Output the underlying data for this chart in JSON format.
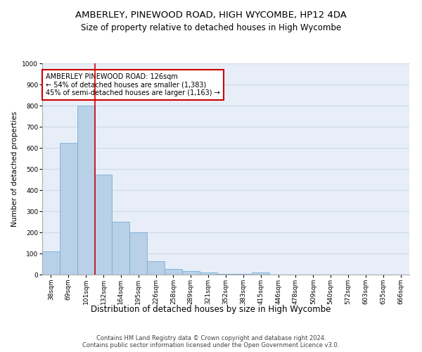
{
  "title": "AMBERLEY, PINEWOOD ROAD, HIGH WYCOMBE, HP12 4DA",
  "subtitle": "Size of property relative to detached houses in High Wycombe",
  "xlabel": "Distribution of detached houses by size in High Wycombe",
  "ylabel": "Number of detached properties",
  "categories": [
    "38sqm",
    "69sqm",
    "101sqm",
    "132sqm",
    "164sqm",
    "195sqm",
    "226sqm",
    "258sqm",
    "289sqm",
    "321sqm",
    "352sqm",
    "383sqm",
    "415sqm",
    "446sqm",
    "478sqm",
    "509sqm",
    "540sqm",
    "572sqm",
    "603sqm",
    "635sqm",
    "666sqm"
  ],
  "values": [
    110,
    625,
    800,
    475,
    250,
    200,
    62,
    27,
    18,
    10,
    5,
    3,
    10,
    0,
    0,
    0,
    0,
    0,
    0,
    0,
    0
  ],
  "bar_color": "#b8d0e8",
  "bar_edge_color": "#7aafd4",
  "vline_x_index": 2.5,
  "vline_color": "#cc0000",
  "annotation_box_text": "AMBERLEY PINEWOOD ROAD: 126sqm\n← 54% of detached houses are smaller (1,383)\n45% of semi-detached houses are larger (1,163) →",
  "annotation_box_facecolor": "white",
  "annotation_box_edgecolor": "#cc0000",
  "ylim": [
    0,
    1000
  ],
  "yticks": [
    0,
    100,
    200,
    300,
    400,
    500,
    600,
    700,
    800,
    900,
    1000
  ],
  "grid_color": "#d0d8e8",
  "bg_color": "#e8eef8",
  "footer_line1": "Contains HM Land Registry data © Crown copyright and database right 2024.",
  "footer_line2": "Contains public sector information licensed under the Open Government Licence v3.0.",
  "title_fontsize": 9.5,
  "subtitle_fontsize": 8.5,
  "xlabel_fontsize": 8.5,
  "ylabel_fontsize": 7.5,
  "tick_fontsize": 6.5,
  "annotation_fontsize": 7,
  "footer_fontsize": 6
}
